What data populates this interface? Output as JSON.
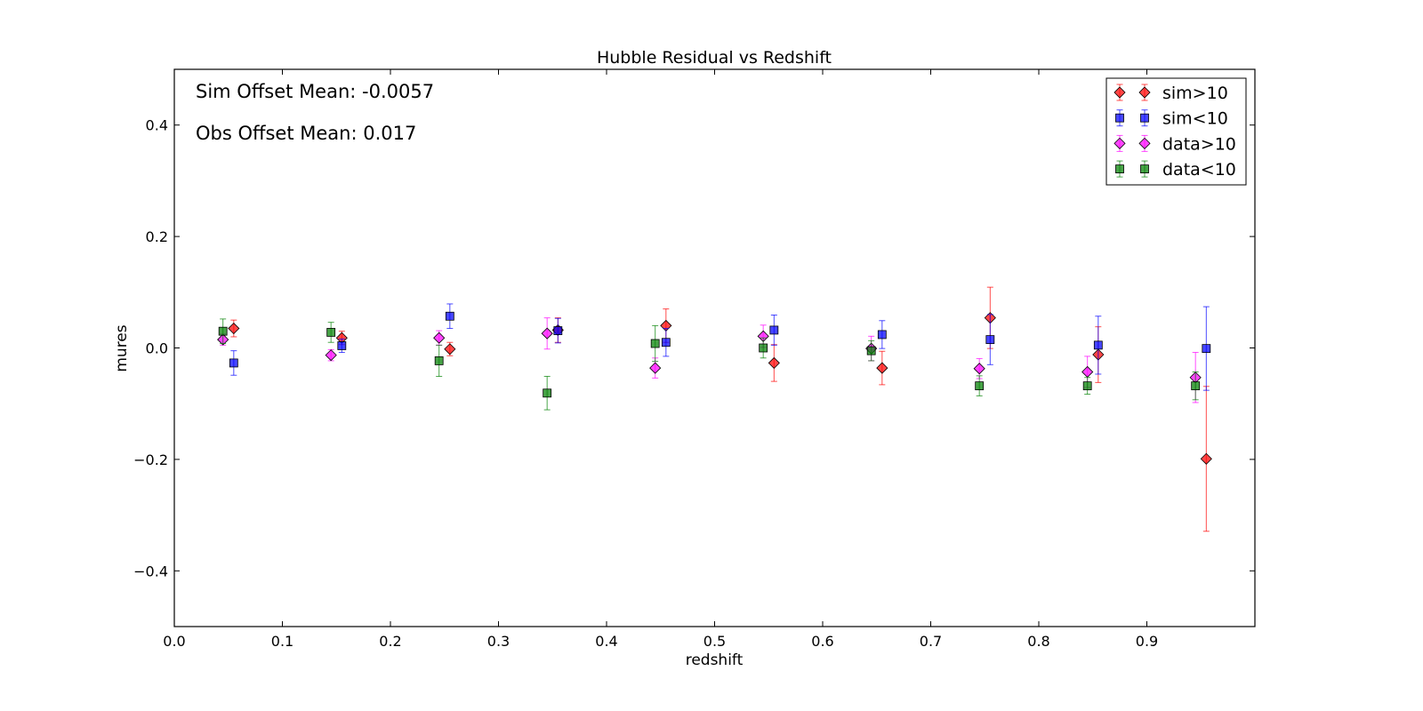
{
  "chart_data": {
    "type": "scatter",
    "title": "Hubble Residual vs Redshift",
    "xlabel": "redshift",
    "ylabel": "mures",
    "xlim": [
      0.0,
      1.0
    ],
    "ylim": [
      -0.5,
      0.5
    ],
    "xticks": [
      0.0,
      0.1,
      0.2,
      0.3,
      0.4,
      0.5,
      0.6,
      0.7,
      0.8,
      0.9
    ],
    "xtick_labels": [
      "0.0",
      "0.1",
      "0.2",
      "0.3",
      "0.4",
      "0.5",
      "0.6",
      "0.7",
      "0.8",
      "0.9"
    ],
    "yticks": [
      -0.4,
      -0.2,
      0.0,
      0.2,
      0.4
    ],
    "ytick_labels": [
      "−0.4",
      "−0.2",
      "0.0",
      "0.2",
      "0.4"
    ],
    "grid": false,
    "legend_position": "top-right",
    "annotations": [
      "Sim Offset Mean: -0.0057",
      "Obs Offset Mean: 0.017"
    ],
    "series": [
      {
        "name": "sim>10",
        "marker": "diamond",
        "color": "#ff0000",
        "x": [
          0.055,
          0.155,
          0.255,
          0.355,
          0.455,
          0.555,
          0.655,
          0.755,
          0.855,
          0.955
        ],
        "y": [
          0.035,
          0.018,
          -0.002,
          0.032,
          0.04,
          -0.027,
          -0.036,
          0.054,
          -0.012,
          -0.199
        ],
        "err": [
          0.015,
          0.012,
          0.012,
          0.022,
          0.03,
          0.033,
          0.03,
          0.055,
          0.05,
          0.13
        ]
      },
      {
        "name": "sim<10",
        "marker": "square",
        "color": "#0000ff",
        "x": [
          0.055,
          0.155,
          0.255,
          0.355,
          0.455,
          0.555,
          0.655,
          0.755,
          0.855,
          0.955
        ],
        "y": [
          -0.027,
          0.004,
          0.057,
          0.031,
          0.01,
          0.032,
          0.024,
          0.015,
          0.005,
          -0.001
        ],
        "err": [
          0.022,
          0.012,
          0.022,
          0.022,
          0.025,
          0.027,
          0.025,
          0.045,
          0.052,
          0.075
        ]
      },
      {
        "name": "data>10",
        "marker": "diamond",
        "color": "#ff00ff",
        "x": [
          0.045,
          0.145,
          0.245,
          0.345,
          0.445,
          0.545,
          0.645,
          0.745,
          0.845,
          0.945
        ],
        "y": [
          0.015,
          -0.013,
          0.018,
          0.026,
          -0.036,
          0.021,
          -0.001,
          -0.037,
          -0.043,
          -0.053
        ],
        "err": [
          0.01,
          0.01,
          0.013,
          0.028,
          0.018,
          0.02,
          0.022,
          0.018,
          0.028,
          0.045
        ]
      },
      {
        "name": "data<10",
        "marker": "square",
        "color": "#008000",
        "x": [
          0.045,
          0.145,
          0.245,
          0.345,
          0.445,
          0.545,
          0.645,
          0.745,
          0.845,
          0.945
        ],
        "y": [
          0.03,
          0.028,
          -0.023,
          -0.081,
          0.008,
          0.0,
          -0.005,
          -0.068,
          -0.068,
          -0.068
        ],
        "err": [
          0.022,
          0.018,
          0.028,
          0.03,
          0.032,
          0.018,
          0.018,
          0.018,
          0.015,
          0.025
        ]
      }
    ]
  }
}
